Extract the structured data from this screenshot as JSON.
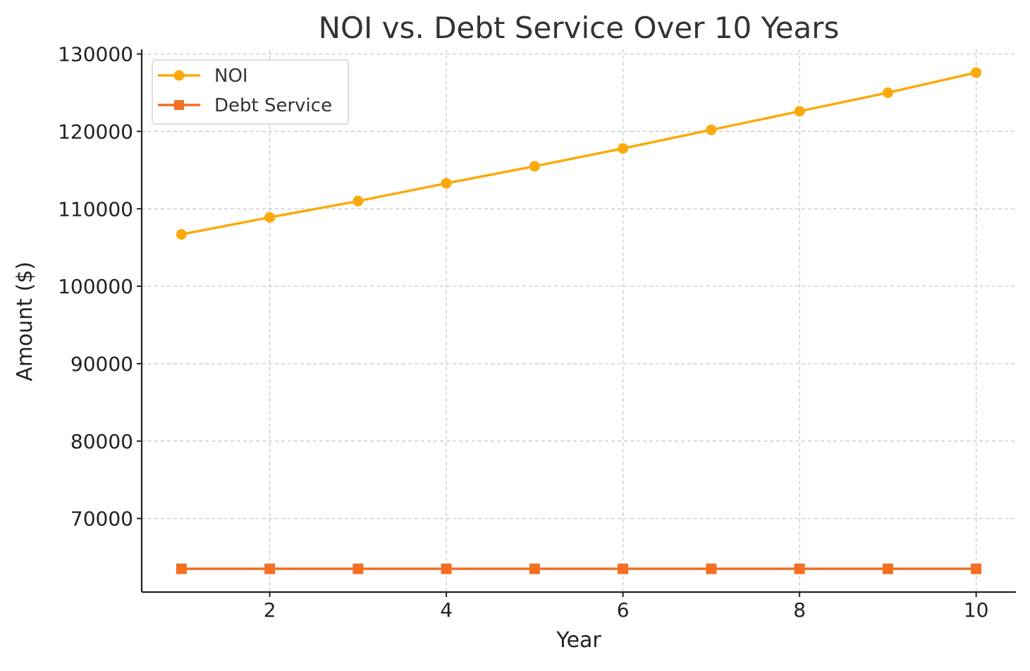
{
  "chart_data": {
    "type": "line",
    "title": "NOI vs. Debt Service Over 10 Years",
    "xlabel": "Year",
    "ylabel": "Amount ($)",
    "x": [
      1,
      2,
      3,
      4,
      5,
      6,
      7,
      8,
      9,
      10
    ],
    "xlim": [
      0.55,
      10.45
    ],
    "ylim": [
      60500,
      130600
    ],
    "xticks": [
      2,
      4,
      6,
      8,
      10
    ],
    "yticks": [
      70000,
      80000,
      90000,
      100000,
      110000,
      120000,
      130000
    ],
    "grid": true,
    "legend_position": "top-left",
    "series": [
      {
        "name": "NOI",
        "color": "#FBAA0A",
        "marker": "circle",
        "values": [
          106700,
          108900,
          111000,
          113300,
          115500,
          117800,
          120200,
          122600,
          125000,
          127600
        ]
      },
      {
        "name": "Debt Service",
        "color": "#F26F23",
        "marker": "square",
        "values": [
          63500,
          63500,
          63500,
          63500,
          63500,
          63500,
          63500,
          63500,
          63500,
          63500
        ]
      }
    ]
  }
}
